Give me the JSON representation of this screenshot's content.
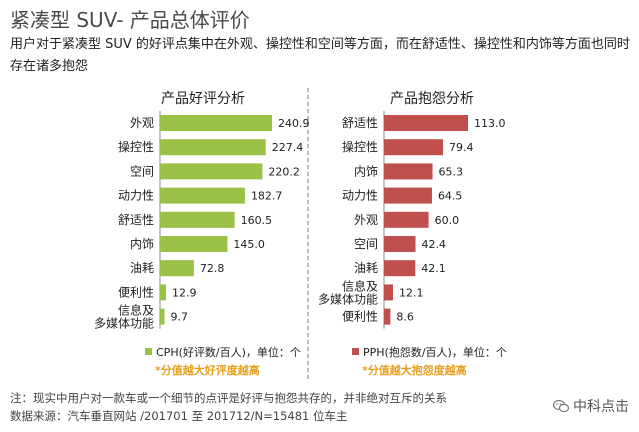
{
  "header": {
    "title": "紧凑型 SUV- 产品总体评价",
    "subtitle": "用户对于紧凑型 SUV 的好评点集中在外观、操控性和空间等方面，而在舒适性、操控性和内饰等方面也同时存在诸多抱怨"
  },
  "chart_data": [
    {
      "type": "bar",
      "orientation": "horizontal",
      "title": "产品好评分析",
      "categories": [
        "外观",
        "操控性",
        "空间",
        "动力性",
        "舒适性",
        "内饰",
        "油耗",
        "便利性",
        "信息及\n多媒体功能"
      ],
      "values": [
        240.9,
        227.4,
        220.2,
        182.7,
        160.5,
        145.0,
        72.8,
        12.9,
        9.7
      ],
      "value_labels": [
        "240.9",
        "227.4",
        "220.2",
        "182.7",
        "160.5",
        "145.0",
        "72.8",
        "12.9",
        "9.7"
      ],
      "color": "#9bc146",
      "xlim": [
        0,
        240.9
      ],
      "legend": "CPH(好评数/百人)，单位：个",
      "note": "*分值越大好评度越高"
    },
    {
      "type": "bar",
      "orientation": "horizontal",
      "title": "产品抱怨分析",
      "categories": [
        "舒适性",
        "操控性",
        "内饰",
        "动力性",
        "外观",
        "空间",
        "油耗",
        "信息及\n多媒体功能",
        "便利性"
      ],
      "values": [
        113.0,
        79.4,
        65.3,
        64.5,
        60.0,
        42.4,
        42.1,
        12.1,
        8.6
      ],
      "value_labels": [
        "113.0",
        "79.4",
        "65.3",
        "64.5",
        "60.0",
        "42.4",
        "42.1",
        "12.1",
        "8.6"
      ],
      "color": "#c0504d",
      "xlim": [
        0,
        113.0
      ],
      "legend": "PPH(抱怨数/百人)，单位：个",
      "note": "*分值越大抱怨度越高"
    }
  ],
  "footer": {
    "note": "注：现实中用户对一款车或一个细节的点评是好评与抱怨共存的，并非绝对互斥的关系",
    "source": "数据来源：汽车垂直网站 /201701 至 201712/N=15481 位车主"
  },
  "brand": {
    "name": "中科点击",
    "icon": "wechat-icon"
  },
  "colors": {
    "divider": "#9aaac0",
    "green": "#9bc146",
    "red": "#c0504d",
    "note": "#e8a020"
  }
}
